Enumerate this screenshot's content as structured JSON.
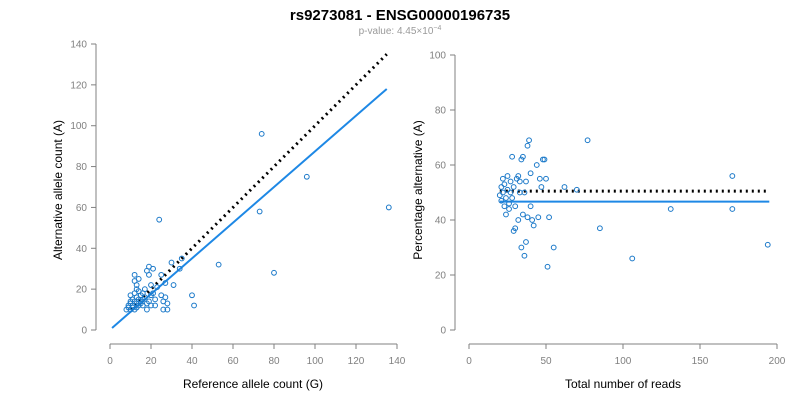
{
  "figure": {
    "title": "rs9273081 - ENSG00000196735",
    "pvalue_prefix": "p-value: 4.45×10",
    "pvalue_exponent": "−4"
  },
  "colors": {
    "point": "#1b79c9",
    "fit_line": "#1e88e5",
    "reference_line": "#000000",
    "axis": "#808080"
  },
  "chart_data": [
    {
      "type": "scatter",
      "xlabel": "Reference allele count (G)",
      "ylabel": "Alternative allele count (A)",
      "xlim": [
        0,
        140
      ],
      "ylim": [
        0,
        140
      ],
      "xticks": [
        0,
        20,
        40,
        60,
        80,
        100,
        120,
        140
      ],
      "yticks": [
        0,
        20,
        40,
        60,
        80,
        100,
        120,
        140
      ],
      "reference_line": {
        "style": "dotted",
        "x": [
          10,
          135
        ],
        "y": [
          10,
          135
        ]
      },
      "fit_line": {
        "x": [
          1,
          135
        ],
        "y": [
          1,
          118
        ]
      },
      "points": [
        [
          8,
          10
        ],
        [
          9,
          12
        ],
        [
          9,
          11
        ],
        [
          10,
          13
        ],
        [
          10,
          10
        ],
        [
          10,
          14
        ],
        [
          10,
          17
        ],
        [
          11,
          12
        ],
        [
          11,
          15
        ],
        [
          11,
          11
        ],
        [
          12,
          10
        ],
        [
          12,
          14
        ],
        [
          12,
          18
        ],
        [
          12,
          24
        ],
        [
          12,
          27
        ],
        [
          13,
          11
        ],
        [
          13,
          13
        ],
        [
          13,
          16
        ],
        [
          13,
          20
        ],
        [
          13,
          22
        ],
        [
          14,
          12
        ],
        [
          14,
          15
        ],
        [
          14,
          19
        ],
        [
          14,
          25
        ],
        [
          15,
          13
        ],
        [
          15,
          17
        ],
        [
          15,
          14
        ],
        [
          16,
          18
        ],
        [
          16,
          15
        ],
        [
          16,
          12
        ],
        [
          17,
          16
        ],
        [
          17,
          20
        ],
        [
          18,
          10
        ],
        [
          18,
          13
        ],
        [
          18,
          29
        ],
        [
          19,
          14
        ],
        [
          19,
          27
        ],
        [
          19,
          31
        ],
        [
          20,
          17
        ],
        [
          20,
          22
        ],
        [
          20,
          12
        ],
        [
          21,
          18
        ],
        [
          21,
          30
        ],
        [
          22,
          15
        ],
        [
          22,
          12
        ],
        [
          23,
          21
        ],
        [
          24,
          54
        ],
        [
          25,
          27
        ],
        [
          25,
          17
        ],
        [
          26,
          14
        ],
        [
          26,
          10
        ],
        [
          27,
          23
        ],
        [
          27,
          16
        ],
        [
          28,
          13
        ],
        [
          28,
          10
        ],
        [
          30,
          33
        ],
        [
          31,
          22
        ],
        [
          34,
          30
        ],
        [
          35,
          35
        ],
        [
          40,
          17
        ],
        [
          41,
          12
        ],
        [
          53,
          32
        ],
        [
          73,
          58
        ],
        [
          74,
          96
        ],
        [
          80,
          28
        ],
        [
          96,
          75
        ],
        [
          136,
          60
        ]
      ]
    },
    {
      "type": "scatter",
      "xlabel": "Total number of reads",
      "ylabel": "Percentage alternative (A)",
      "xlim": [
        0,
        200
      ],
      "ylim": [
        0,
        100
      ],
      "xticks": [
        0,
        50,
        100,
        150,
        200
      ],
      "yticks": [
        0,
        20,
        40,
        60,
        80,
        100
      ],
      "reference_line": {
        "style": "dotted",
        "y": 50.5,
        "x": [
          20,
          195
        ]
      },
      "fit_line": {
        "y": 46.7,
        "x": [
          20,
          195
        ]
      },
      "points": [
        [
          20,
          49
        ],
        [
          21,
          52
        ],
        [
          21,
          47
        ],
        [
          22,
          50
        ],
        [
          22,
          55
        ],
        [
          23,
          45
        ],
        [
          23,
          53
        ],
        [
          24,
          42
        ],
        [
          24,
          48
        ],
        [
          25,
          51
        ],
        [
          25,
          56
        ],
        [
          26,
          46
        ],
        [
          26,
          44
        ],
        [
          27,
          50
        ],
        [
          27,
          54
        ],
        [
          28,
          63
        ],
        [
          28,
          48
        ],
        [
          29,
          36
        ],
        [
          29,
          52
        ],
        [
          30,
          37
        ],
        [
          30,
          45
        ],
        [
          31,
          55
        ],
        [
          32,
          56
        ],
        [
          32,
          40
        ],
        [
          33,
          50
        ],
        [
          33,
          54
        ],
        [
          34,
          30
        ],
        [
          34,
          62
        ],
        [
          35,
          63
        ],
        [
          35,
          42
        ],
        [
          36,
          50
        ],
        [
          36,
          27
        ],
        [
          37,
          32
        ],
        [
          37,
          54
        ],
        [
          38,
          67
        ],
        [
          38,
          41
        ],
        [
          39,
          69
        ],
        [
          40,
          57
        ],
        [
          40,
          45
        ],
        [
          41,
          40
        ],
        [
          42,
          38
        ],
        [
          44,
          60
        ],
        [
          45,
          41
        ],
        [
          46,
          55
        ],
        [
          47,
          52
        ],
        [
          48,
          62
        ],
        [
          49,
          62
        ],
        [
          50,
          55
        ],
        [
          51,
          23
        ],
        [
          52,
          41
        ],
        [
          55,
          30
        ],
        [
          62,
          52
        ],
        [
          70,
          51
        ],
        [
          77,
          69
        ],
        [
          85,
          37
        ],
        [
          106,
          26
        ],
        [
          131,
          44
        ],
        [
          171,
          56
        ],
        [
          171,
          44
        ],
        [
          194,
          31
        ]
      ]
    }
  ]
}
